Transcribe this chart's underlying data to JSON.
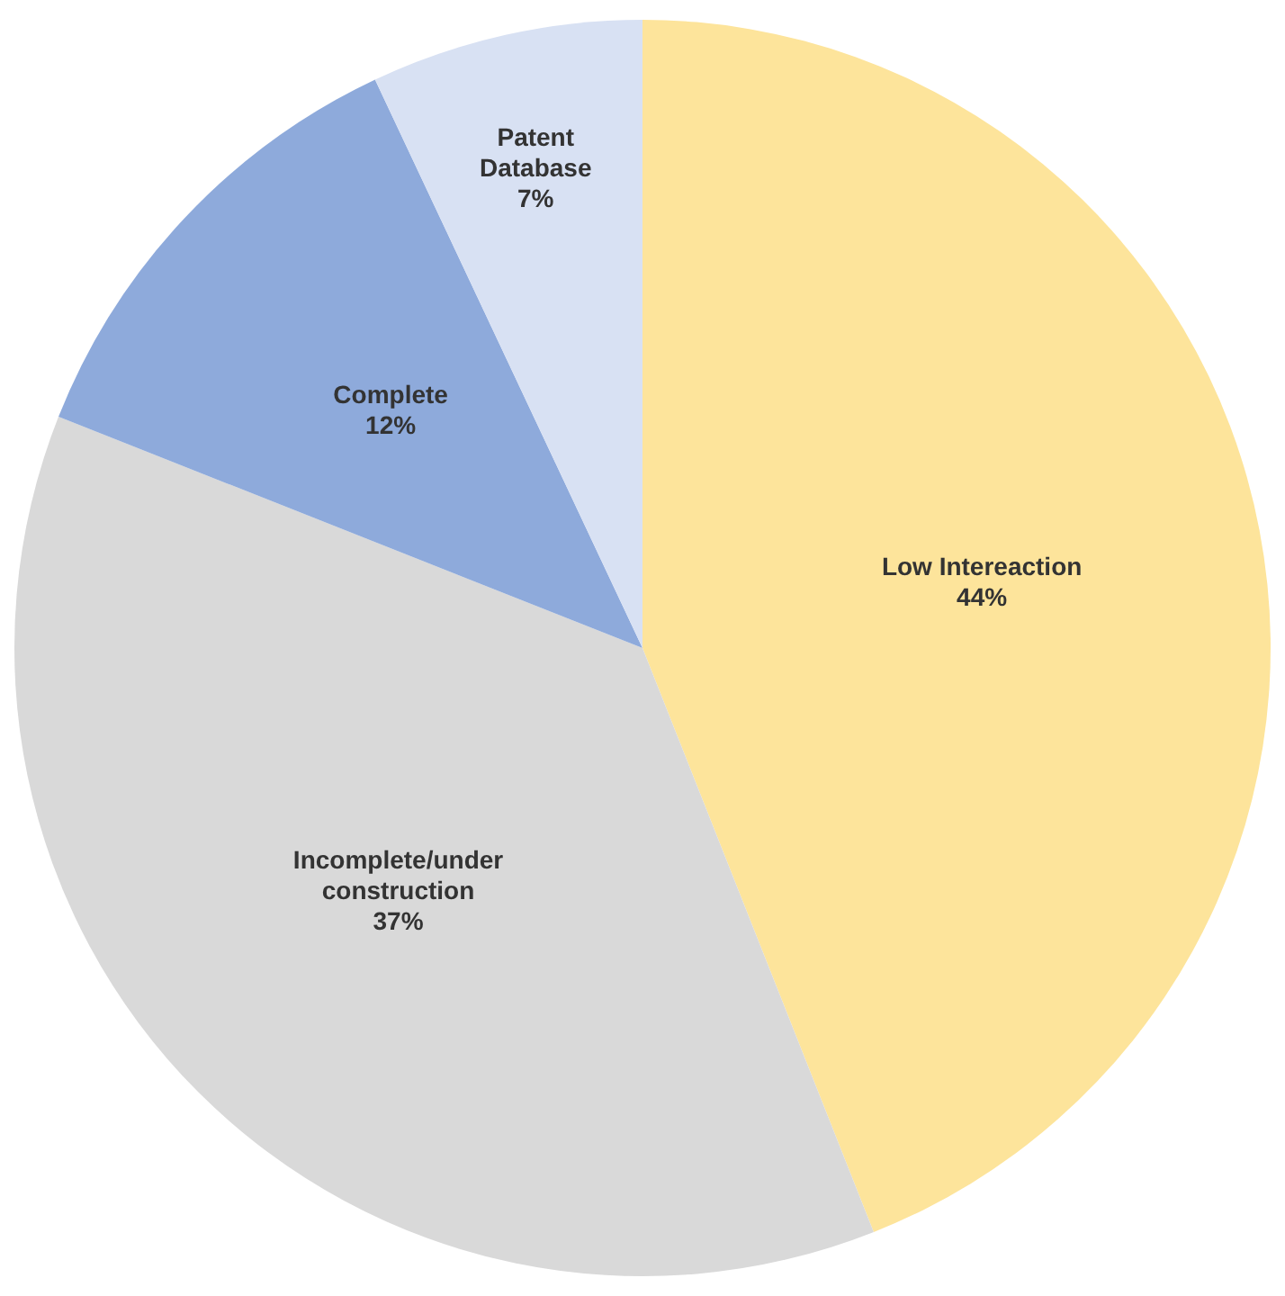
{
  "chart_data": {
    "type": "pie",
    "categories": [
      "Low Intereaction",
      "Incomplete/under construction",
      "Complete",
      "Patent Database"
    ],
    "values": [
      44,
      37,
      12,
      7
    ],
    "colors": [
      "#fde49b",
      "#d9d9d9",
      "#8eaadb",
      "#d8e1f3"
    ],
    "value_labels": [
      "44%",
      "37%",
      "12%",
      "7%"
    ],
    "legend": false
  }
}
